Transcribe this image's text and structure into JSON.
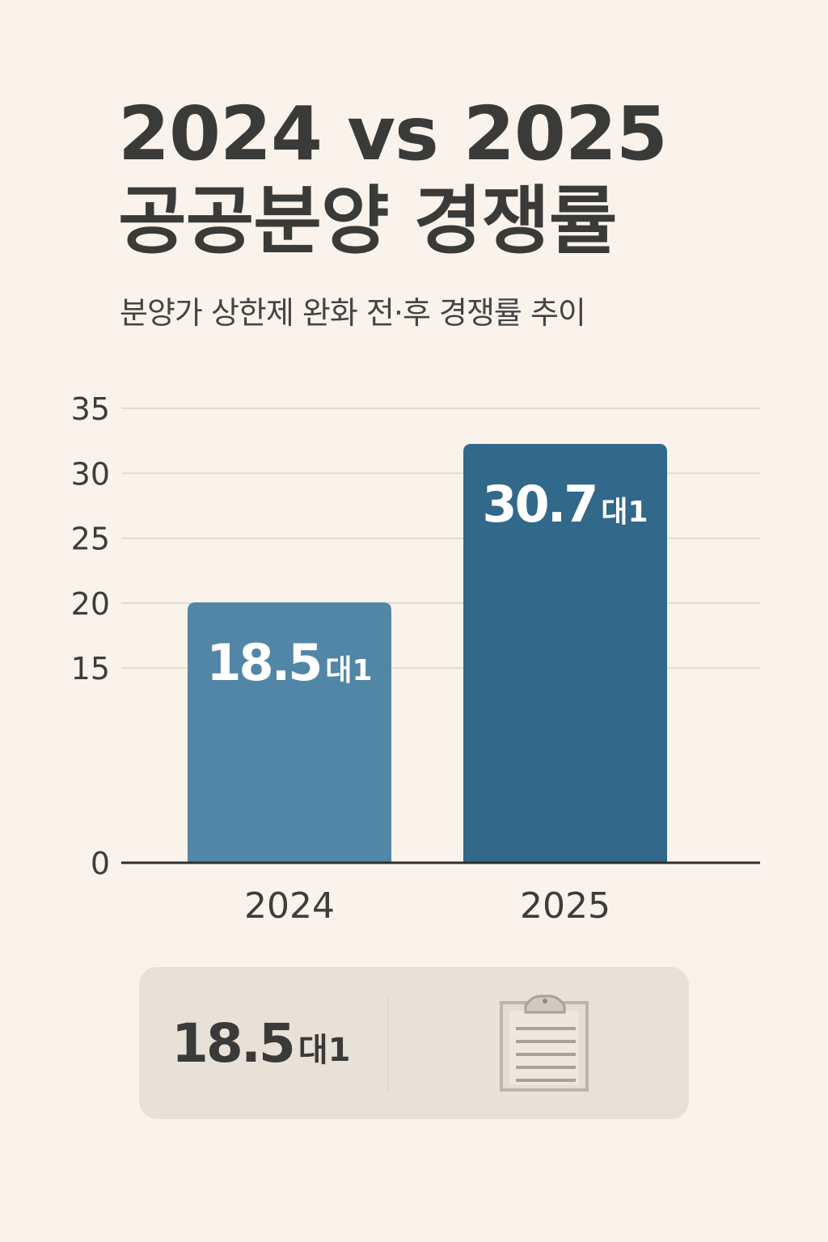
{
  "title": {
    "line1": "2024 vs 2025",
    "line2": "공공분양 경쟁률"
  },
  "subtitle": "분양가 상한제 완화 전·후 경쟁률 추이",
  "chart_data": {
    "type": "bar",
    "categories": [
      "2024",
      "2025"
    ],
    "values": [
      18.5,
      30.7
    ],
    "value_labels": [
      "18.5",
      "30.7"
    ],
    "value_unit": "대1",
    "yticks": [
      35,
      30,
      25,
      20,
      15,
      0
    ],
    "ylim": [
      0,
      35
    ],
    "grid": true,
    "colors": [
      "#5286a6",
      "#326889"
    ]
  },
  "summary": {
    "value": "18.5",
    "unit": "대1",
    "icon": "clipboard-icon"
  }
}
